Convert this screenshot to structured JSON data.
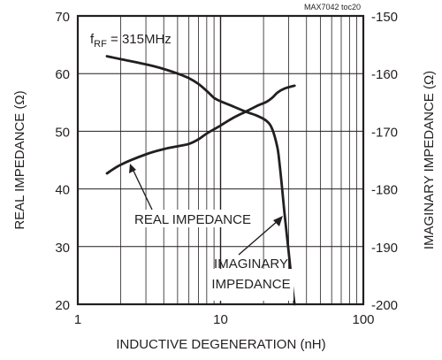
{
  "chart_data": {
    "type": "line",
    "corner_label": "MAX7042 toc20",
    "condition": {
      "prefix": "f",
      "subscript": "RF",
      "suffix": " = 315MHz"
    },
    "xlabel": "INDUCTIVE DEGENERATION (nH)",
    "ylabel_left": "REAL IMPEDANCE (Ω)",
    "ylabel_right": "IMAGINARY IMPEDANCE (Ω)",
    "x_scale": "log",
    "xlim": [
      1,
      100
    ],
    "ylim_left": [
      20,
      70
    ],
    "ylim_right": [
      -200,
      -150
    ],
    "x_ticks": [
      "1",
      "10",
      "100"
    ],
    "y_ticks_left": [
      "20",
      "30",
      "40",
      "50",
      "60",
      "70"
    ],
    "y_ticks_right": [
      "-200",
      "-190",
      "-180",
      "-170",
      "-160",
      "-150"
    ],
    "grid": true,
    "series": [
      {
        "name": "REAL IMPEDANCE",
        "axis": "left",
        "x": [
          1.6,
          2,
          3,
          4,
          5,
          6,
          7,
          8,
          10,
          12,
          15,
          18,
          21,
          23,
          25,
          28,
          33
        ],
        "y": [
          42.7,
          44.2,
          46,
          46.9,
          47.4,
          47.8,
          48.6,
          49.6,
          51,
          52.2,
          53.4,
          54.4,
          55.1,
          55.8,
          56.7,
          57.4,
          57.9
        ]
      },
      {
        "name": "IMAGINARY IMPEDANCE",
        "axis": "right",
        "x": [
          1.6,
          2,
          3,
          4,
          5,
          6,
          7,
          8,
          9,
          10,
          12,
          15,
          18,
          21,
          23,
          25,
          26,
          27,
          28,
          30,
          32,
          33
        ],
        "y": [
          -157,
          -157.5,
          -158.4,
          -159.2,
          -160,
          -160.8,
          -161.8,
          -163,
          -164.2,
          -164.8,
          -165.6,
          -166.6,
          -167.3,
          -168.2,
          -169.6,
          -172.8,
          -176,
          -180,
          -184,
          -191,
          -197.5,
          -200
        ]
      }
    ],
    "annotations": {
      "real_label": "REAL IMPEDANCE",
      "imag_label_line1": "IMAGINARY",
      "imag_label_line2": "IMPEDANCE"
    }
  }
}
